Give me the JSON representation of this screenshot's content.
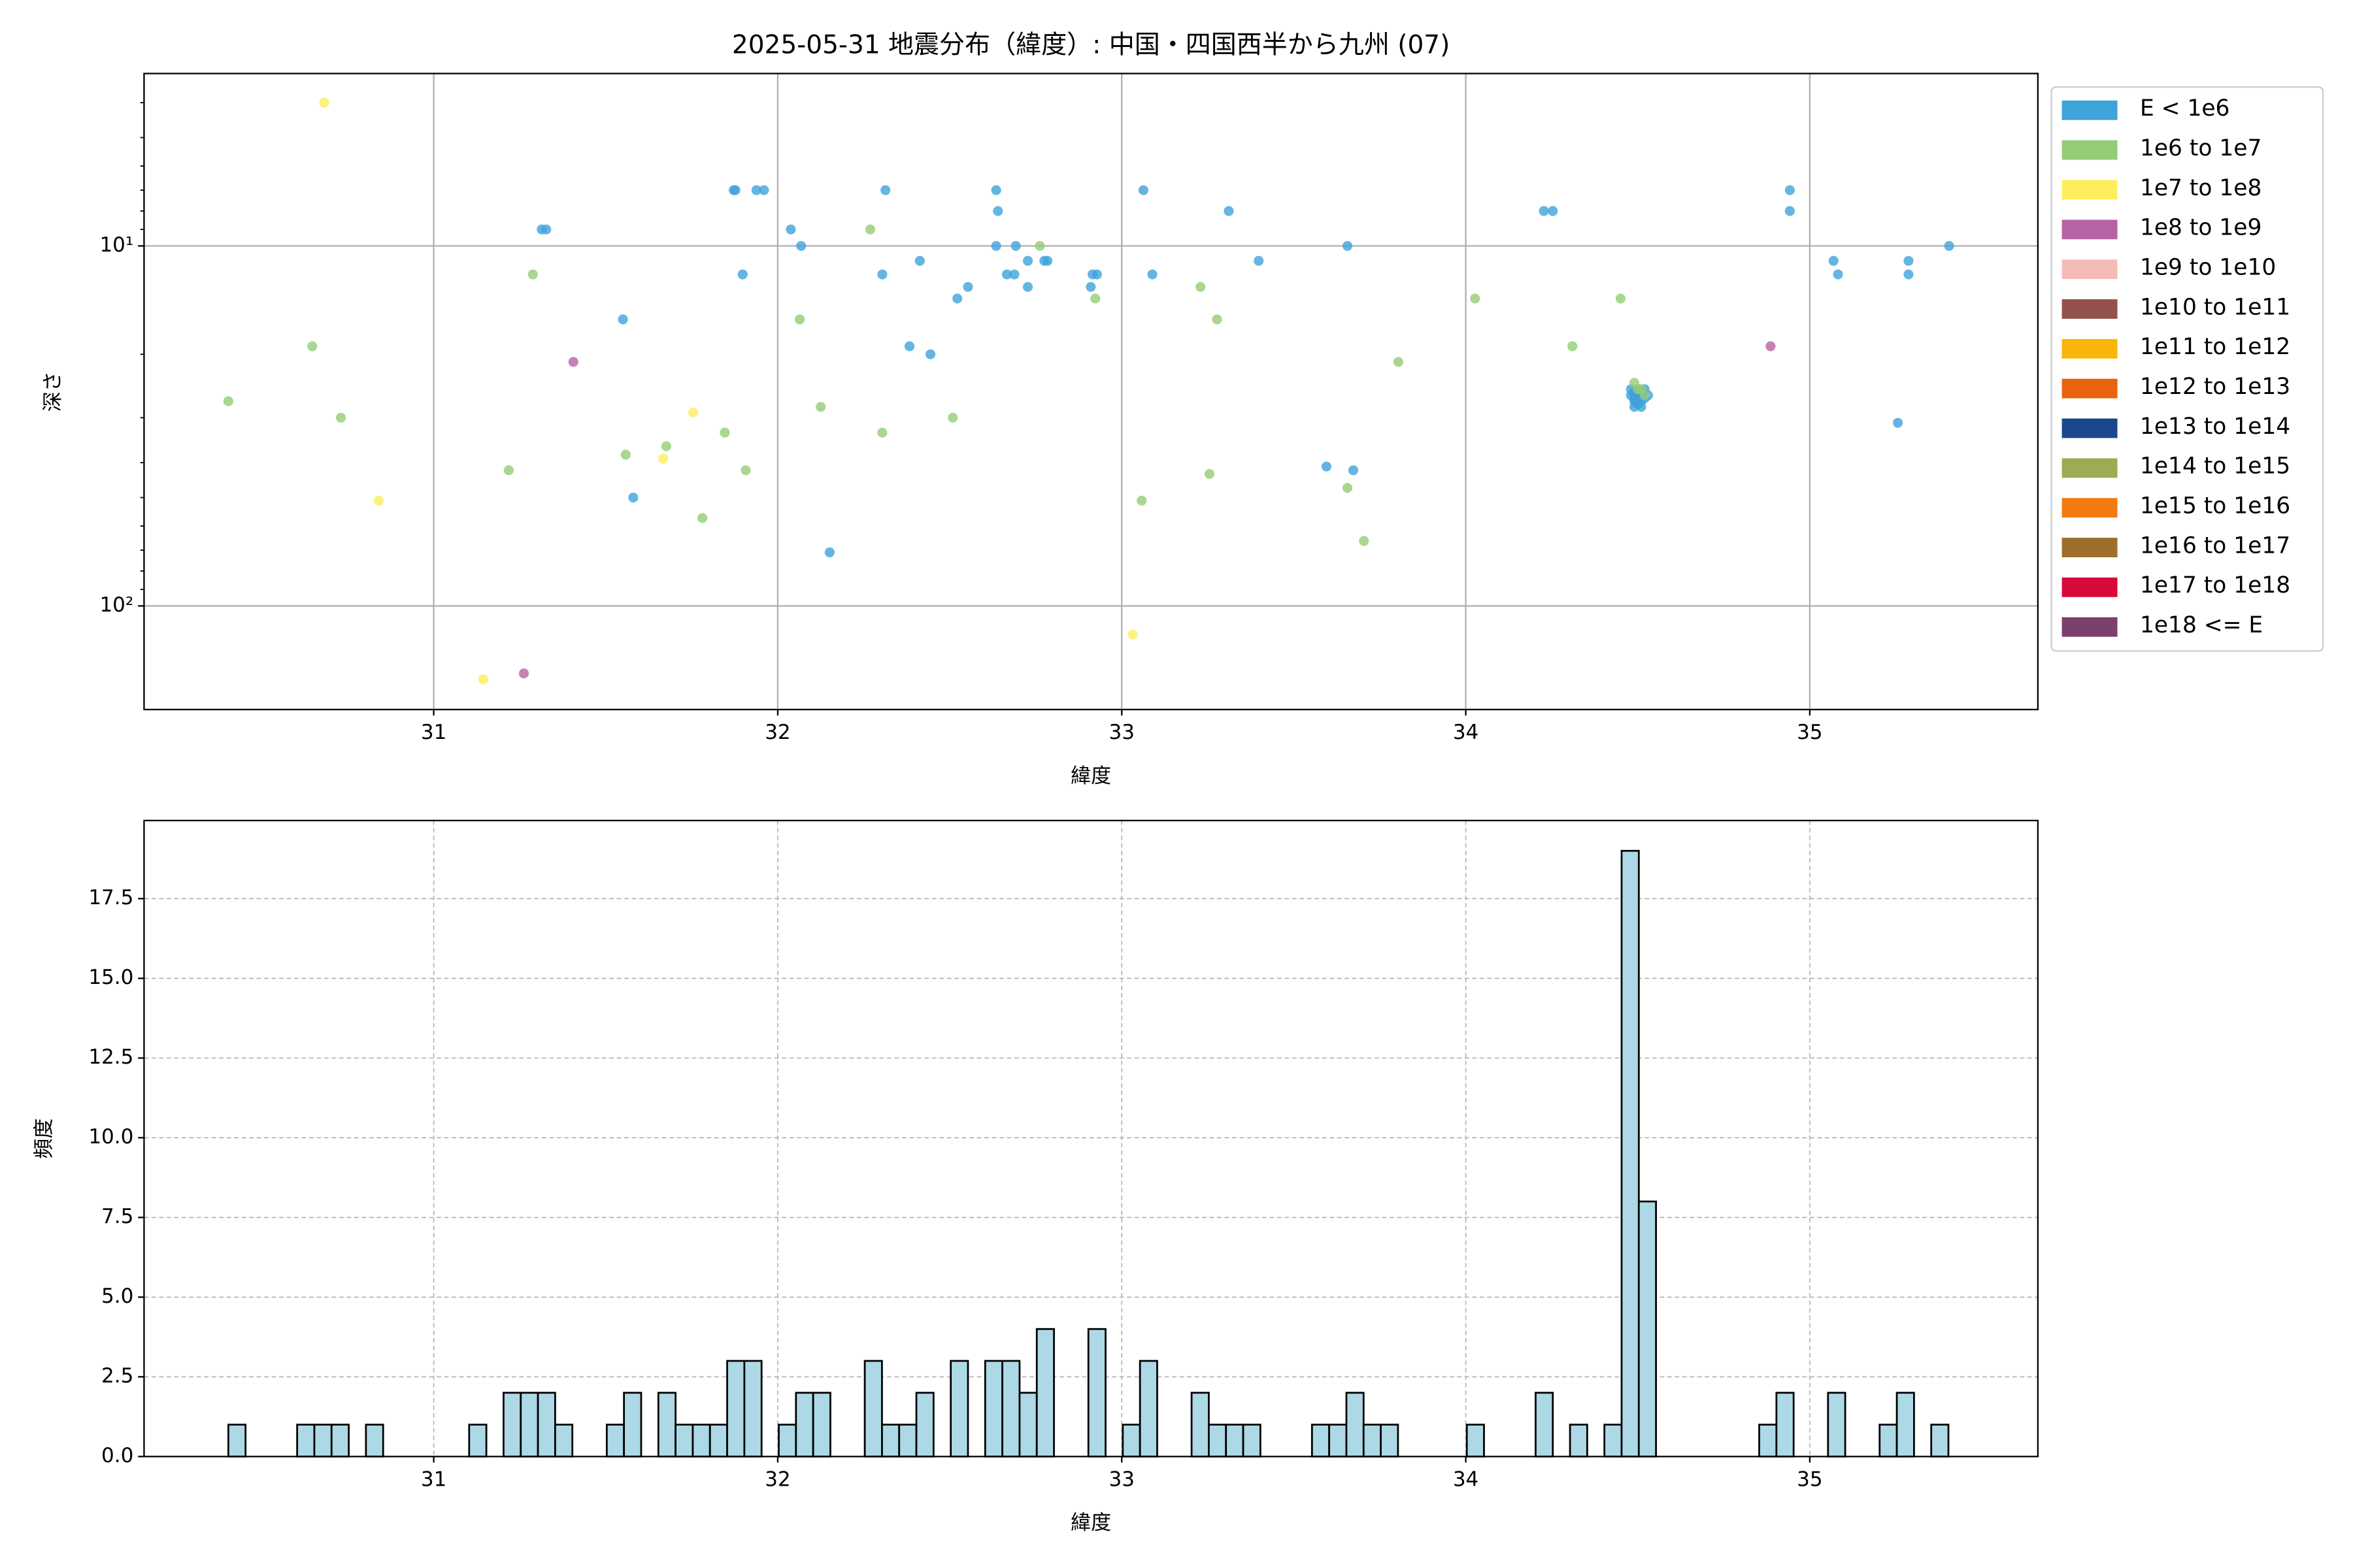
{
  "chart_data": [
    {
      "type": "scatter",
      "title": "2025-05-31 地震分布（緯度）: 中国・四国西半から九州 (07)",
      "xlabel": "緯度",
      "ylabel": "深さ",
      "xlim": [
        30.158,
        35.663
      ],
      "ylim": [
        194,
        3.32
      ],
      "yscale": "log",
      "xticks": [
        31,
        32,
        33,
        34,
        35
      ],
      "yticks": [
        {
          "value": 10,
          "label": "10¹"
        },
        {
          "value": 100,
          "label": "10²"
        }
      ],
      "yminor_ticks": [
        4,
        5,
        6,
        7,
        8,
        9,
        20,
        30,
        40,
        50,
        60,
        70,
        80,
        90
      ],
      "grid": true,
      "legend": "outside right",
      "series": [
        {
          "name": "E < 1e6",
          "color": "#3fa3dc",
          "x": [
            31.872,
            31.877,
            31.938,
            31.96,
            31.314,
            31.327,
            31.55,
            31.58,
            31.898,
            32.038,
            32.068,
            32.151,
            32.304,
            32.313,
            32.383,
            32.413,
            32.444,
            32.522,
            32.553,
            32.635,
            32.64,
            32.635,
            32.666,
            32.688,
            32.692,
            32.727,
            32.727,
            32.775,
            32.784,
            32.91,
            32.915,
            32.928,
            33.063,
            33.089,
            33.311,
            33.398,
            33.595,
            33.656,
            33.673,
            34.227,
            34.253,
            34.48,
            34.49,
            34.49,
            34.49,
            34.5,
            34.5,
            34.5,
            34.5,
            34.5,
            34.49,
            34.5,
            34.49,
            34.5,
            34.48,
            34.49,
            34.5,
            34.5,
            34.51,
            34.51,
            34.52,
            34.52,
            34.51,
            34.53,
            34.942,
            34.942,
            35.069,
            35.082,
            35.256,
            35.287,
            35.287,
            35.405
          ],
          "y": [
            7,
            7,
            7,
            7,
            9,
            9,
            16,
            50,
            12,
            9,
            10,
            71,
            12,
            7,
            19,
            11,
            20,
            14,
            13,
            7,
            8,
            10,
            12,
            12,
            10,
            11,
            13,
            11,
            11,
            13,
            12,
            12,
            7,
            12,
            8,
            11,
            41,
            10,
            42,
            8,
            8,
            25,
            25.5,
            26,
            26.5,
            27,
            27.5,
            25,
            26,
            27,
            28,
            25.5,
            26.5,
            25,
            26,
            27,
            26,
            27.5,
            26,
            27,
            25,
            26.5,
            28,
            26,
            7,
            8,
            11,
            12,
            31,
            12,
            11,
            10
          ]
        },
        {
          "name": "1e6 to 1e7",
          "color": "#94cd76",
          "x": [
            30.403,
            30.647,
            30.73,
            31.218,
            31.288,
            31.558,
            31.676,
            31.781,
            31.846,
            31.907,
            32.064,
            32.125,
            32.269,
            32.304,
            32.509,
            32.762,
            32.923,
            33.058,
            33.229,
            33.255,
            33.277,
            33.656,
            33.704,
            33.804,
            34.027,
            34.31,
            34.45,
            34.49,
            34.5,
            34.51,
            34.52
          ],
          "y": [
            27,
            19,
            30,
            42,
            12,
            38,
            36,
            57,
            33,
            42,
            16,
            28,
            9,
            33,
            30,
            10,
            14,
            51,
            13,
            43,
            16,
            47,
            66,
            21,
            14,
            19,
            14,
            24,
            25,
            25,
            26
          ]
        },
        {
          "name": "1e7 to 1e8",
          "color": "#fdee5e",
          "x": [
            30.682,
            30.84,
            31.144,
            31.667,
            31.754,
            33.032
          ],
          "y": [
            4.0,
            51,
            160,
            39,
            29,
            120
          ]
        },
        {
          "name": "1e8 to 1e9",
          "color": "#b663a4",
          "x": [
            31.406,
            31.262,
            34.886
          ],
          "y": [
            21,
            154,
            19
          ]
        },
        {
          "name": "1e9 to 1e10",
          "color": "#f4bcb7",
          "x": [],
          "y": []
        },
        {
          "name": "1e10 to 1e11",
          "color": "#92514b",
          "x": [],
          "y": []
        },
        {
          "name": "1e11 to 1e12",
          "color": "#f9b50a",
          "x": [],
          "y": []
        },
        {
          "name": "1e12 to 1e13",
          "color": "#e9620e",
          "x": [],
          "y": []
        },
        {
          "name": "1e13 to 1e14",
          "color": "#1b478d",
          "x": [],
          "y": []
        },
        {
          "name": "1e14 to 1e15",
          "color": "#9bac53",
          "x": [],
          "y": []
        },
        {
          "name": "1e15 to 1e16",
          "color": "#f27a10",
          "x": [],
          "y": []
        },
        {
          "name": "1e16 to 1e17",
          "color": "#9c6f2d",
          "x": [],
          "y": []
        },
        {
          "name": "1e17 to 1e18",
          "color": "#d9083a",
          "x": [],
          "y": []
        },
        {
          "name": "1e18 <= E",
          "color": "#7b406e",
          "x": [],
          "y": []
        }
      ]
    },
    {
      "type": "histogram",
      "xlabel": "緯度",
      "ylabel": "頻度",
      "xlim": [
        30.158,
        35.663
      ],
      "ylim": [
        0,
        19.95
      ],
      "xticks": [
        31,
        32,
        33,
        34,
        35
      ],
      "yticks": [
        {
          "value": 0,
          "label": "0.0"
        },
        2.5,
        {
          "value": 5,
          "label": "5.0"
        },
        7.5,
        {
          "value": 10,
          "label": "10.0"
        },
        12.5,
        {
          "value": 15,
          "label": "15.0"
        },
        17.5
      ],
      "grid": true,
      "color": "#add8e6",
      "edgecolor": "#000000",
      "bins": [
        30.403,
        30.453,
        30.503,
        30.553,
        30.603,
        30.653,
        30.703,
        30.753,
        30.803,
        30.853,
        30.903,
        30.953,
        31.003,
        31.053,
        31.103,
        31.153,
        31.203,
        31.253,
        31.303,
        31.353,
        31.403,
        31.453,
        31.503,
        31.553,
        31.603,
        31.653,
        31.703,
        31.753,
        31.803,
        31.853,
        31.903,
        31.953,
        32.003,
        32.053,
        32.103,
        32.153,
        32.203,
        32.253,
        32.303,
        32.353,
        32.403,
        32.453,
        32.503,
        32.553,
        32.603,
        32.653,
        32.703,
        32.753,
        32.803,
        32.853,
        32.903,
        32.953,
        33.003,
        33.053,
        33.103,
        33.153,
        33.203,
        33.253,
        33.303,
        33.353,
        33.403,
        33.453,
        33.503,
        33.553,
        33.603,
        33.653,
        33.703,
        33.753,
        33.803,
        33.853,
        33.903,
        33.953,
        34.003,
        34.053,
        34.103,
        34.153,
        34.203,
        34.253,
        34.303,
        34.353,
        34.403,
        34.453,
        34.503,
        34.553,
        34.603,
        34.653,
        34.703,
        34.753,
        34.803,
        34.853,
        34.903,
        34.953,
        35.003,
        35.053,
        35.103,
        35.153,
        35.203,
        35.253,
        35.303,
        35.353,
        35.403
      ],
      "values": [
        1,
        0,
        0,
        0,
        1,
        1,
        1,
        0,
        1,
        0,
        0,
        0,
        0,
        0,
        1,
        0,
        2,
        2,
        2,
        1,
        0,
        0,
        1,
        2,
        0,
        2,
        1,
        1,
        1,
        3,
        3,
        0,
        1,
        2,
        2,
        0,
        0,
        3,
        1,
        1,
        2,
        0,
        3,
        0,
        3,
        3,
        2,
        4,
        0,
        0,
        4,
        0,
        1,
        3,
        0,
        0,
        2,
        1,
        1,
        1,
        0,
        0,
        0,
        1,
        1,
        2,
        1,
        1,
        0,
        0,
        0,
        0,
        1,
        0,
        0,
        0,
        2,
        0,
        1,
        0,
        1,
        19,
        8,
        0,
        0,
        0,
        0,
        0,
        0,
        1,
        2,
        0,
        0,
        2,
        0,
        0,
        1,
        2,
        0,
        1
      ]
    }
  ]
}
